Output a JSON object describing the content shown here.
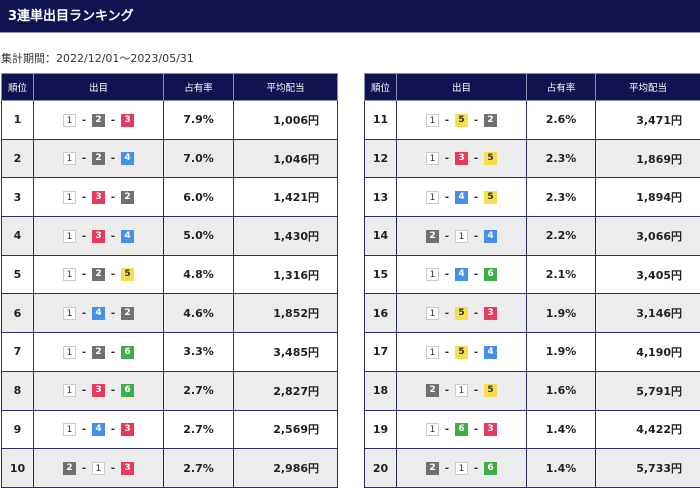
{
  "title": "3連単出目ランキング",
  "period": "集計期間：2022/12/01～2023/05/31",
  "headers": {
    "rank": "順位",
    "combo": "出目",
    "share": "占有率",
    "payout": "平均配当"
  },
  "boat_colors": {
    "1": "#ffffff",
    "2": "#707070",
    "3": "#e43a5c",
    "4": "#4590e6",
    "5": "#f4df4f",
    "6": "#3fae47"
  },
  "rows": [
    {
      "rank": "1",
      "combo": [
        "1",
        "2",
        "3"
      ],
      "share": "7.9%",
      "payout": "1,006円"
    },
    {
      "rank": "2",
      "combo": [
        "1",
        "2",
        "4"
      ],
      "share": "7.0%",
      "payout": "1,046円"
    },
    {
      "rank": "3",
      "combo": [
        "1",
        "3",
        "2"
      ],
      "share": "6.0%",
      "payout": "1,421円"
    },
    {
      "rank": "4",
      "combo": [
        "1",
        "3",
        "4"
      ],
      "share": "5.0%",
      "payout": "1,430円"
    },
    {
      "rank": "5",
      "combo": [
        "1",
        "2",
        "5"
      ],
      "share": "4.8%",
      "payout": "1,316円"
    },
    {
      "rank": "6",
      "combo": [
        "1",
        "4",
        "2"
      ],
      "share": "4.6%",
      "payout": "1,852円"
    },
    {
      "rank": "7",
      "combo": [
        "1",
        "2",
        "6"
      ],
      "share": "3.3%",
      "payout": "3,485円"
    },
    {
      "rank": "8",
      "combo": [
        "1",
        "3",
        "6"
      ],
      "share": "2.7%",
      "payout": "2,827円"
    },
    {
      "rank": "9",
      "combo": [
        "1",
        "4",
        "3"
      ],
      "share": "2.7%",
      "payout": "2,569円"
    },
    {
      "rank": "10",
      "combo": [
        "2",
        "1",
        "3"
      ],
      "share": "2.7%",
      "payout": "2,986円"
    },
    {
      "rank": "11",
      "combo": [
        "1",
        "5",
        "2"
      ],
      "share": "2.6%",
      "payout": "3,471円"
    },
    {
      "rank": "12",
      "combo": [
        "1",
        "3",
        "5"
      ],
      "share": "2.3%",
      "payout": "1,869円"
    },
    {
      "rank": "13",
      "combo": [
        "1",
        "4",
        "5"
      ],
      "share": "2.3%",
      "payout": "1,894円"
    },
    {
      "rank": "14",
      "combo": [
        "2",
        "1",
        "4"
      ],
      "share": "2.2%",
      "payout": "3,066円"
    },
    {
      "rank": "15",
      "combo": [
        "1",
        "4",
        "6"
      ],
      "share": "2.1%",
      "payout": "3,405円"
    },
    {
      "rank": "16",
      "combo": [
        "1",
        "5",
        "3"
      ],
      "share": "1.9%",
      "payout": "3,146円"
    },
    {
      "rank": "17",
      "combo": [
        "1",
        "5",
        "4"
      ],
      "share": "1.9%",
      "payout": "4,190円"
    },
    {
      "rank": "18",
      "combo": [
        "2",
        "1",
        "5"
      ],
      "share": "1.6%",
      "payout": "5,791円"
    },
    {
      "rank": "19",
      "combo": [
        "1",
        "6",
        "3"
      ],
      "share": "1.4%",
      "payout": "4,422円"
    },
    {
      "rank": "20",
      "combo": [
        "2",
        "1",
        "6"
      ],
      "share": "1.4%",
      "payout": "5,733円"
    }
  ]
}
